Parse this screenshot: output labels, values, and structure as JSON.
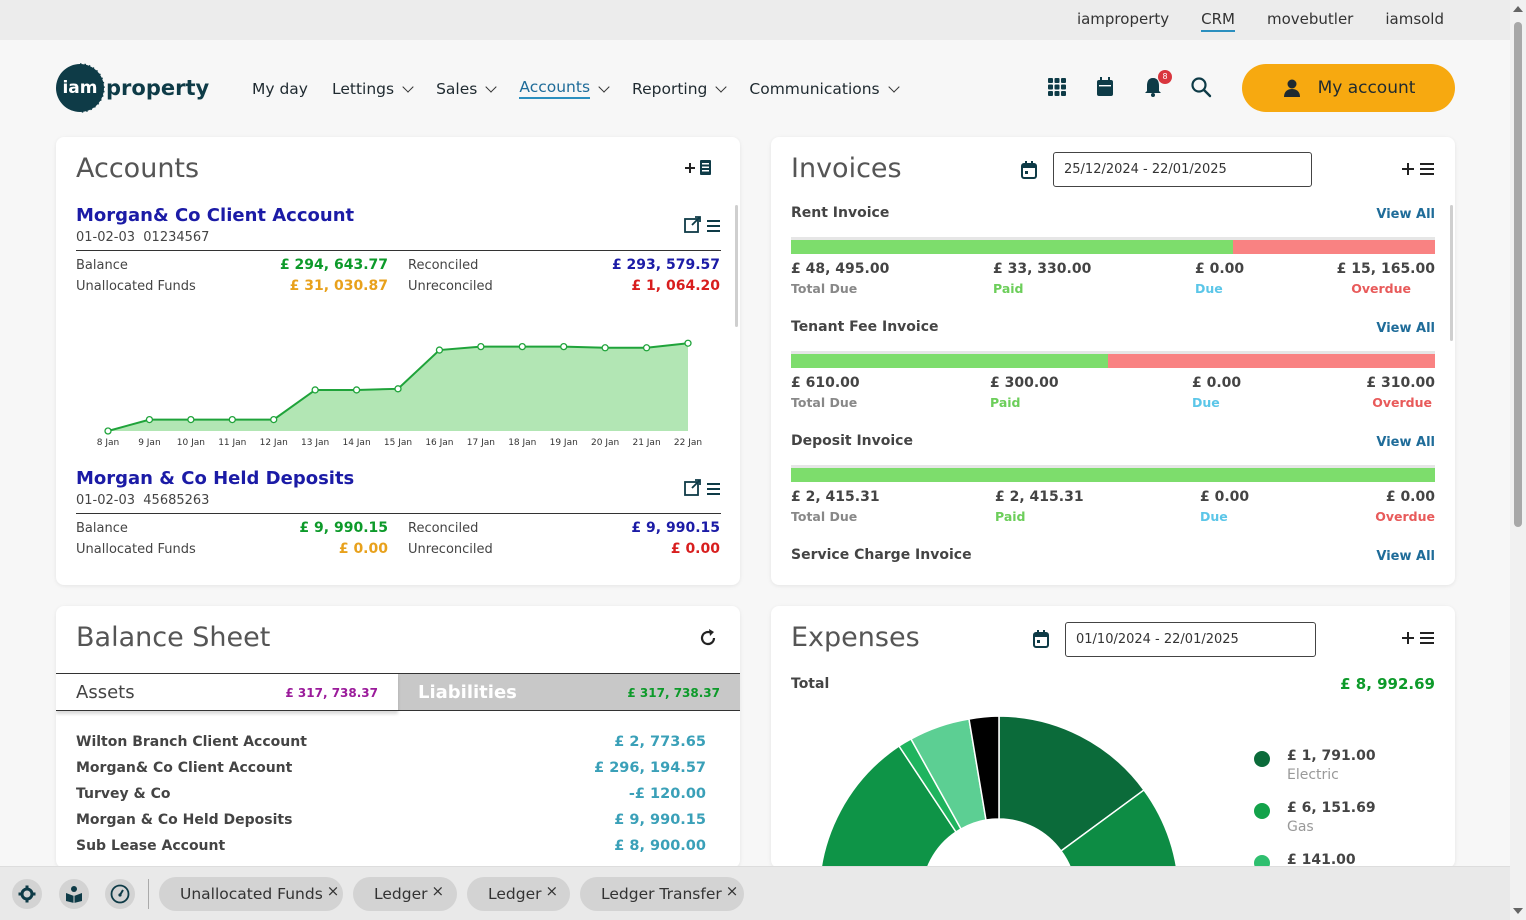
{
  "topbar": {
    "links": [
      "iamproperty",
      "CRM",
      "movebutler",
      "iamsold"
    ],
    "active": "CRM"
  },
  "header": {
    "logo_mark": "iam",
    "logo_word": "property",
    "nav": [
      {
        "label": "My day",
        "dropdown": false
      },
      {
        "label": "Lettings",
        "dropdown": true
      },
      {
        "label": "Sales",
        "dropdown": true
      },
      {
        "label": "Accounts",
        "dropdown": true,
        "active": true
      },
      {
        "label": "Reporting",
        "dropdown": true
      },
      {
        "label": "Communications",
        "dropdown": true
      }
    ],
    "icons": [
      "apps-grid-icon",
      "calendar-icon",
      "bell-icon",
      "search-icon"
    ],
    "notification_count": "8",
    "my_account_label": "My account",
    "accent": "#f7a910"
  },
  "accounts": {
    "title": "Accounts",
    "items": [
      {
        "name": "Morgan& Co Client Account",
        "sort_code": "01-02-03",
        "account_no": "01234567",
        "balance_label": "Balance",
        "balance": "£ 294, 643.77",
        "unallocated_label": "Unallocated Funds",
        "unallocated": "£ 31, 030.87",
        "reconciled_label": "Reconciled",
        "reconciled": "£ 293, 579.57",
        "unreconciled_label": "Unreconciled",
        "unreconciled": "£ 1, 064.20"
      },
      {
        "name": "Morgan & Co Held Deposits",
        "sort_code": "01-02-03",
        "account_no": "45685263",
        "balance_label": "Balance",
        "balance": "£ 9, 990.15",
        "unallocated_label": "Unallocated Funds",
        "unallocated": "£ 0.00",
        "reconciled_label": "Reconciled",
        "reconciled": "£ 9, 990.15",
        "unreconciled_label": "Unreconciled",
        "unreconciled": "£ 0.00"
      }
    ]
  },
  "chart_data": {
    "type": "area",
    "categories": [
      "8 Jan",
      "9 Jan",
      "10 Jan",
      "11 Jan",
      "12 Jan",
      "13 Jan",
      "14 Jan",
      "15 Jan",
      "16 Jan",
      "17 Jan",
      "18 Jan",
      "19 Jan",
      "20 Jan",
      "21 Jan",
      "22 Jan"
    ],
    "values": [
      0,
      10,
      10,
      10,
      10,
      36,
      36,
      37,
      71,
      74,
      74,
      74,
      73,
      73,
      77
    ],
    "ylim": [
      0,
      100
    ],
    "grid": false,
    "line_color": "#1fa33a",
    "fill_color": "#b2e6b4"
  },
  "invoices": {
    "title": "Invoices",
    "date_range": "25/12/2024 - 22/01/2025",
    "view_all": "View All",
    "types": [
      {
        "name": "Rent Invoice",
        "total_due": "£ 48, 495.00",
        "paid": "£ 33, 330.00",
        "due": "£ 0.00",
        "overdue": "£ 15, 165.00",
        "paid_fraction": 0.687,
        "overdue_fraction": 0.313
      },
      {
        "name": "Tenant Fee Invoice",
        "total_due": "£ 610.00",
        "paid": "£ 300.00",
        "due": "£ 0.00",
        "overdue": "£ 310.00",
        "paid_fraction": 0.492,
        "overdue_fraction": 0.508
      },
      {
        "name": "Deposit Invoice",
        "total_due": "£ 2, 415.31",
        "paid": "£ 2, 415.31",
        "due": "£ 0.00",
        "overdue": "£ 0.00",
        "paid_fraction": 1.0,
        "overdue_fraction": 0.0
      },
      {
        "name": "Service Charge Invoice"
      }
    ],
    "labels": {
      "total_due": "Total Due",
      "paid": "Paid",
      "due": "Due",
      "overdue": "Overdue"
    }
  },
  "balance_sheet": {
    "title": "Balance Sheet",
    "assets_label": "Assets",
    "assets_total": "£ 317, 738.37",
    "liabilities_label": "Liabilities",
    "liabilities_total": "£ 317, 738.37",
    "rows": [
      {
        "name": "Wilton Branch Client Account",
        "value": "£ 2, 773.65"
      },
      {
        "name": "Morgan& Co Client Account",
        "value": "£ 296, 194.57"
      },
      {
        "name": "Turvey & Co",
        "value": "-£ 120.00"
      },
      {
        "name": "Morgan & Co Held Deposits",
        "value": "£ 9, 990.15"
      },
      {
        "name": "Sub Lease Account",
        "value": "£ 8, 900.00"
      }
    ]
  },
  "expenses": {
    "title": "Expenses",
    "date_range": "01/10/2024 - 22/01/2025",
    "total_label": "Total",
    "total": "£ 8, 992.69",
    "legend": [
      {
        "amount": "£ 1, 791.00",
        "label": "Electric",
        "color": "#0b6b3a"
      },
      {
        "amount": "£ 6, 151.69",
        "label": "Gas",
        "color": "#13a24a"
      },
      {
        "amount": "£ 141.00",
        "label": "",
        "color": "#2fbf6f"
      }
    ]
  },
  "bottombar": {
    "icons": [
      "gear-icon",
      "book-icon",
      "gauge-icon"
    ],
    "chips": [
      "Unallocated Funds",
      "Ledger",
      "Ledger",
      "Ledger Transfer"
    ],
    "close_glyph": "×"
  }
}
